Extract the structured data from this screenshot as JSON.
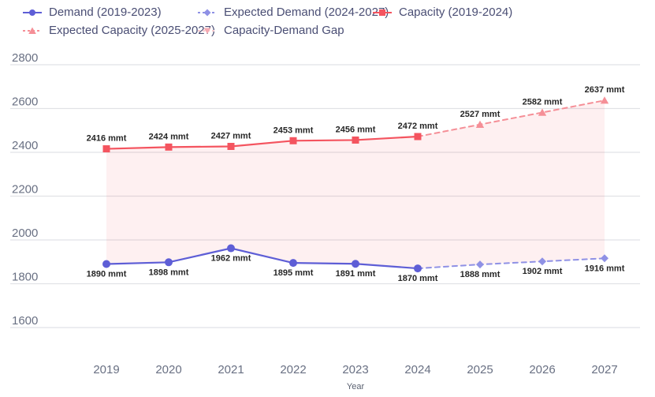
{
  "legend": {
    "items": [
      {
        "label": "Demand (2019-2023)",
        "marker": "circle",
        "color": "#5e5ed6"
      },
      {
        "label": "Expected Demand (2024-2027)",
        "marker": "diamond",
        "color": "#8f91e5"
      },
      {
        "label": "Capacity (2019-2024)",
        "marker": "square",
        "color": "#f4545f"
      },
      {
        "label": "Expected Capacity (2025-2027)",
        "marker": "triangle-up",
        "color": "#f58f97"
      },
      {
        "label": "Capacity-Demand Gap",
        "marker": "triangle-down",
        "color": "#f5aab2",
        "line_color": "#f8ccd1"
      }
    ]
  },
  "chart_data": {
    "type": "line",
    "title": "",
    "xlabel": "Year",
    "ylabel": "",
    "unit": "mmt",
    "x": [
      2019,
      2020,
      2021,
      2022,
      2023,
      2024,
      2025,
      2026,
      2027
    ],
    "yticks": [
      2800,
      2600,
      2400,
      2200,
      2000,
      1800,
      1600
    ],
    "ylim": [
      1600,
      2800
    ],
    "grid": "horizontal",
    "legend_position": "top",
    "axis_color": "#697083",
    "data_label_color": "#262626",
    "grid_color": "#e1e2e6",
    "series": [
      {
        "id": "demand",
        "name": "Demand (2019-2023)",
        "years": [
          2019,
          2020,
          2021,
          2022,
          2023,
          2024
        ],
        "values": [
          1890,
          1898,
          1962,
          1895,
          1891,
          1870
        ],
        "color": "#5e5ed6",
        "line": "solid",
        "marker": "circle",
        "labels": "below"
      },
      {
        "id": "expected-demand",
        "name": "Expected Demand (2024-2027)",
        "years": [
          2025,
          2026,
          2027
        ],
        "values": [
          1888,
          1902,
          1916
        ],
        "color": "#8f91e5",
        "line": "dashed",
        "marker": "diamond",
        "labels": "below",
        "connects_from": "demand"
      },
      {
        "id": "capacity",
        "name": "Capacity (2019-2024)",
        "years": [
          2019,
          2020,
          2021,
          2022,
          2023,
          2024
        ],
        "values": [
          2416,
          2424,
          2427,
          2453,
          2456,
          2472
        ],
        "color": "#f4545f",
        "line": "solid",
        "marker": "square",
        "labels": "above"
      },
      {
        "id": "expected-capacity",
        "name": "Expected Capacity (2025-2027)",
        "years": [
          2025,
          2026,
          2027
        ],
        "values": [
          2527,
          2582,
          2637
        ],
        "color": "#f58f97",
        "line": "dashed",
        "marker": "triangle-up",
        "labels": "above",
        "connects_from": "capacity"
      }
    ],
    "gap_area": {
      "name": "Capacity-Demand Gap",
      "between": [
        "capacity + expected-capacity",
        "demand + expected-demand"
      ],
      "color": "#f45a64"
    }
  }
}
